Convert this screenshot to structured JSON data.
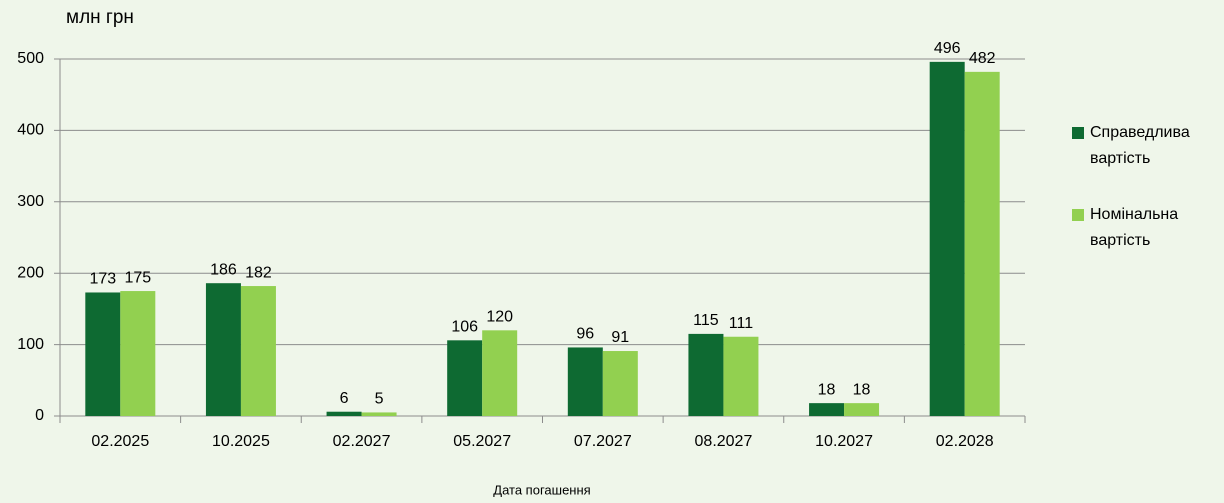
{
  "chart_data": {
    "type": "bar",
    "y_axis_label": "млн грн",
    "x_axis_label": "Дата погашення",
    "categories": [
      "02.2025",
      "10.2025",
      "02.2027",
      "05.2027",
      "07.2027",
      "08.2027",
      "10.2027",
      "02.2028"
    ],
    "series": [
      {
        "name": "Справедлива вартість",
        "color": "#0e6a32",
        "values": [
          173,
          186,
          6,
          106,
          96,
          115,
          18,
          496
        ]
      },
      {
        "name": "Номінальна вартість",
        "color": "#92d050",
        "values": [
          175,
          182,
          5,
          120,
          91,
          111,
          18,
          482
        ]
      }
    ],
    "ylim": [
      0,
      500
    ],
    "yticks": [
      0,
      100,
      200,
      300,
      400,
      500
    ],
    "grid": true,
    "legend": "right"
  }
}
